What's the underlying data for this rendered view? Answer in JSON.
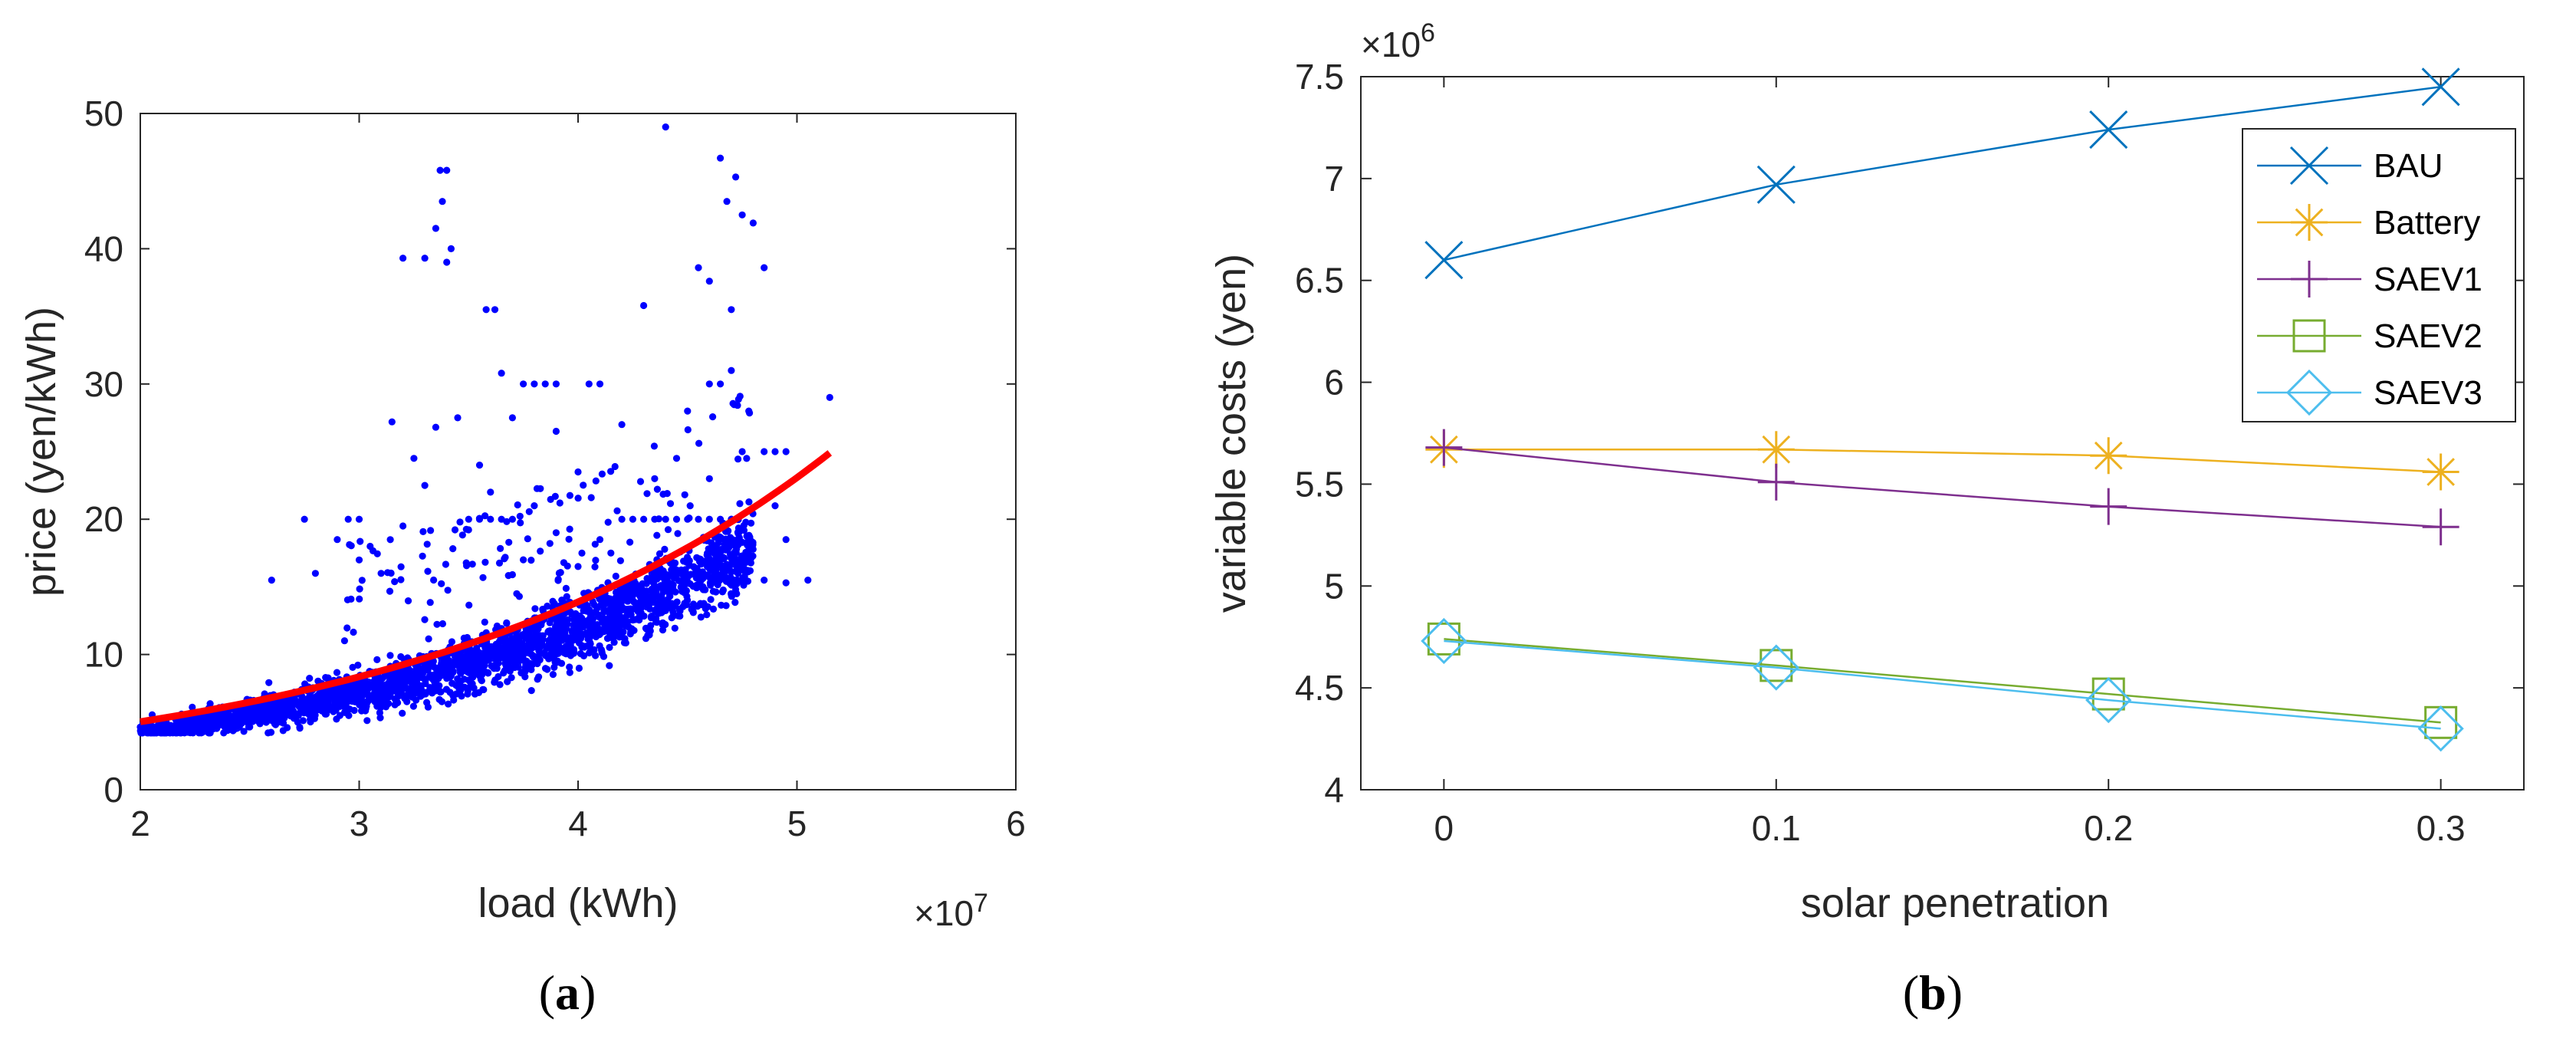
{
  "chart_data": [
    {
      "type": "scatter",
      "panel_label": "a",
      "xlabel": "load (kWh)",
      "ylabel": "price (yen/kWh)",
      "x_multiplier": "×10",
      "x_exponent": "7",
      "xlim": [
        2,
        6
      ],
      "ylim": [
        0,
        50
      ],
      "xticks": [
        "2",
        "3",
        "4",
        "5",
        "6"
      ],
      "yticks": [
        "0",
        "10",
        "20",
        "30",
        "40",
        "50"
      ],
      "scatter_color": "#0000ff",
      "fit_color": "#ff0000",
      "scatter_points": [
        [
          3.37,
          45.8
        ],
        [
          3.4,
          45.8
        ],
        [
          3.38,
          43.5
        ],
        [
          3.35,
          41.5
        ],
        [
          3.42,
          40.0
        ],
        [
          3.2,
          39.3
        ],
        [
          3.3,
          39.3
        ],
        [
          3.4,
          39.0
        ],
        [
          3.58,
          35.5
        ],
        [
          3.62,
          35.5
        ],
        [
          4.4,
          49.0
        ],
        [
          4.65,
          46.7
        ],
        [
          4.72,
          45.3
        ],
        [
          4.68,
          43.5
        ],
        [
          4.75,
          42.5
        ],
        [
          4.8,
          41.9
        ],
        [
          4.55,
          38.6
        ],
        [
          4.6,
          37.6
        ],
        [
          4.85,
          38.6
        ],
        [
          4.3,
          35.8
        ],
        [
          4.7,
          35.5
        ],
        [
          3.15,
          27.2
        ],
        [
          3.35,
          26.8
        ],
        [
          3.75,
          30.0
        ],
        [
          3.8,
          30.0
        ],
        [
          3.85,
          30.0
        ],
        [
          3.9,
          30.0
        ],
        [
          4.05,
          30.0
        ],
        [
          4.1,
          30.0
        ],
        [
          3.65,
          30.8
        ],
        [
          4.6,
          30.0
        ],
        [
          4.65,
          30.0
        ],
        [
          4.7,
          31.0
        ],
        [
          4.78,
          28.0
        ],
        [
          4.5,
          28.0
        ],
        [
          5.15,
          29.0
        ],
        [
          3.45,
          27.5
        ],
        [
          3.7,
          27.5
        ],
        [
          3.9,
          26.5
        ],
        [
          4.2,
          27.0
        ],
        [
          4.75,
          25.0
        ],
        [
          4.85,
          25.0
        ],
        [
          4.9,
          25.0
        ],
        [
          4.95,
          25.0
        ],
        [
          2.75,
          20.0
        ],
        [
          3.25,
          24.5
        ],
        [
          3.3,
          22.5
        ],
        [
          3.55,
          24.0
        ],
        [
          3.6,
          22.0
        ],
        [
          4.0,
          23.5
        ],
        [
          4.35,
          23.0
        ],
        [
          4.45,
          24.5
        ],
        [
          4.6,
          23.0
        ],
        [
          4.9,
          21.0
        ],
        [
          4.95,
          18.5
        ],
        [
          5.05,
          15.5
        ],
        [
          4.95,
          15.3
        ],
        [
          4.85,
          15.5
        ],
        [
          3.05,
          18.0
        ],
        [
          3.1,
          16.0
        ],
        [
          2.95,
          20.0
        ],
        [
          3.0,
          20.0
        ],
        [
          2.9,
          18.5
        ],
        [
          2.6,
          15.5
        ],
        [
          2.8,
          16.0
        ],
        [
          3.2,
          19.5
        ],
        [
          3.5,
          20.0
        ],
        [
          3.55,
          20.0
        ],
        [
          3.6,
          20.0
        ],
        [
          3.65,
          20.0
        ],
        [
          3.7,
          20.0
        ],
        [
          4.2,
          20.0
        ],
        [
          4.25,
          20.0
        ],
        [
          4.3,
          20.0
        ],
        [
          4.35,
          20.0
        ],
        [
          4.4,
          20.0
        ],
        [
          4.45,
          20.0
        ],
        [
          4.5,
          20.0
        ],
        [
          4.55,
          20.0
        ],
        [
          4.6,
          20.0
        ],
        [
          4.65,
          20.0
        ],
        [
          4.7,
          20.0
        ],
        [
          3.8,
          21.0
        ],
        [
          3.9,
          19.0
        ],
        [
          4.1,
          18.5
        ],
        [
          4.15,
          17.5
        ],
        [
          3.75,
          17.0
        ],
        [
          4.0,
          16.5
        ]
      ],
      "dense_band": {
        "seed": 42,
        "count": 2400,
        "x_range": [
          2.0,
          4.8
        ]
      },
      "fit_curve": {
        "a": 1.82,
        "b": 0.508,
        "x_range": [
          2.0,
          5.15
        ]
      }
    },
    {
      "type": "line",
      "panel_label": "b",
      "xlabel": "solar penetration",
      "ylabel": "variable costs (yen)",
      "y_multiplier": "×10",
      "y_exponent": "6",
      "xlim": [
        -0.025,
        0.325
      ],
      "ylim": [
        4,
        7.5
      ],
      "xticks": [
        "0",
        "0.1",
        "0.2",
        "0.3"
      ],
      "yticks": [
        "4",
        "4.5",
        "5",
        "5.5",
        "6",
        "6.5",
        "7",
        "7.5"
      ],
      "x": [
        0,
        0.1,
        0.2,
        0.3
      ],
      "legend_position": "top-right",
      "series": [
        {
          "name": "BAU",
          "values": [
            6.6,
            6.97,
            7.24,
            7.45
          ],
          "color": "#0072bd",
          "marker": "x"
        },
        {
          "name": "Battery",
          "values": [
            5.67,
            5.67,
            5.64,
            5.56
          ],
          "color": "#edb120",
          "marker": "star"
        },
        {
          "name": "SAEV1",
          "values": [
            5.68,
            5.51,
            5.39,
            5.29
          ],
          "color": "#7e2f8e",
          "marker": "plus"
        },
        {
          "name": "SAEV2",
          "values": [
            4.74,
            4.61,
            4.47,
            4.33
          ],
          "color": "#77ac30",
          "marker": "square"
        },
        {
          "name": "SAEV3",
          "values": [
            4.73,
            4.6,
            4.44,
            4.3
          ],
          "color": "#4dbeee",
          "marker": "diamond"
        }
      ]
    }
  ]
}
